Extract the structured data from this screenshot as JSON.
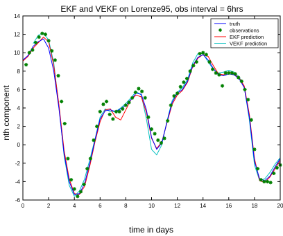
{
  "chart_data": {
    "type": "line",
    "title": "EKF and VEKF on Lorenze95, obs interval = 6hrs",
    "xlabel": "time in days",
    "ylabel": "nth component",
    "xlim": [
      0,
      20
    ],
    "ylim": [
      -6,
      14
    ],
    "xticks": [
      "0",
      "2",
      "4",
      "6",
      "8",
      "10",
      "12",
      "14",
      "16",
      "18",
      "20"
    ],
    "yticks": [
      "14",
      "12",
      "10",
      "8",
      "6",
      "4",
      "2",
      "0",
      "-2",
      "-4",
      "-6"
    ],
    "legend_position": "top-right",
    "grid": false,
    "series": [
      {
        "name": "truth",
        "style": "line",
        "color": "#0000ff",
        "x": [
          0.0,
          0.4,
          0.8,
          1.2,
          1.6,
          2.0,
          2.4,
          2.8,
          3.2,
          3.6,
          4.0,
          4.4,
          4.8,
          5.2,
          5.6,
          6.0,
          6.4,
          6.8,
          7.2,
          7.6,
          8.0,
          8.4,
          8.8,
          9.2,
          9.6,
          10.0,
          10.4,
          10.8,
          11.2,
          11.6,
          12.0,
          12.4,
          12.8,
          13.2,
          13.6,
          14.0,
          14.4,
          14.8,
          15.2,
          15.6,
          16.0,
          16.4,
          16.8,
          17.2,
          17.6,
          18.0,
          18.4,
          18.8,
          19.2,
          19.6,
          20.0
        ],
        "y": [
          9.2,
          9.7,
          10.7,
          11.2,
          11.5,
          10.5,
          8.0,
          4.0,
          -1.0,
          -4.0,
          -5.4,
          -5.3,
          -4.2,
          -2.0,
          0.5,
          2.8,
          3.7,
          3.8,
          3.6,
          3.9,
          4.3,
          4.9,
          5.6,
          5.5,
          3.8,
          0.8,
          -0.5,
          0.2,
          2.5,
          4.6,
          5.6,
          6.0,
          6.9,
          8.6,
          9.5,
          9.8,
          9.2,
          8.3,
          7.6,
          7.5,
          7.7,
          7.6,
          7.2,
          6.2,
          3.0,
          -1.8,
          -3.7,
          -3.9,
          -3.4,
          -2.4,
          -1.5
        ]
      },
      {
        "name": "observations",
        "style": "markers",
        "color": "#008000",
        "x": [
          0.25,
          0.5,
          0.75,
          1.0,
          1.25,
          1.5,
          1.75,
          2.0,
          2.25,
          2.5,
          2.75,
          3.0,
          3.25,
          3.5,
          3.75,
          4.0,
          4.25,
          4.5,
          4.75,
          5.0,
          5.25,
          5.5,
          5.75,
          6.0,
          6.25,
          6.5,
          6.75,
          7.0,
          7.25,
          7.5,
          7.75,
          8.0,
          8.25,
          8.5,
          8.75,
          9.0,
          9.25,
          9.5,
          9.75,
          10.0,
          10.25,
          10.5,
          10.75,
          11.0,
          11.25,
          11.5,
          11.75,
          12.0,
          12.25,
          12.5,
          12.75,
          13.0,
          13.25,
          13.5,
          13.75,
          14.0,
          14.25,
          14.5,
          14.75,
          15.0,
          15.25,
          15.5,
          15.75,
          16.0,
          16.25,
          16.5,
          16.75,
          17.0,
          17.25,
          17.5,
          17.75,
          18.0,
          18.25,
          18.5,
          18.75,
          19.0,
          19.25,
          19.5,
          19.75,
          20.0
        ],
        "y": [
          8.7,
          10.0,
          10.3,
          11.1,
          11.7,
          12.1,
          12.0,
          11.3,
          10.2,
          9.2,
          7.5,
          4.7,
          2.3,
          -1.5,
          -3.8,
          -4.8,
          -5.6,
          -5.1,
          -4.3,
          -2.6,
          -1.5,
          0.5,
          2.0,
          3.6,
          4.4,
          4.7,
          3.3,
          2.8,
          3.6,
          3.6,
          3.9,
          4.3,
          4.6,
          5.1,
          5.7,
          6.1,
          5.8,
          5.1,
          3.0,
          1.7,
          1.2,
          0.5,
          0.2,
          0.7,
          2.6,
          4.3,
          5.3,
          5.6,
          6.3,
          6.8,
          7.2,
          8.0,
          8.6,
          9.0,
          9.9,
          10.0,
          9.8,
          9.0,
          8.2,
          7.8,
          7.6,
          6.4,
          7.8,
          7.8,
          7.8,
          7.7,
          7.3,
          6.9,
          6.0,
          4.9,
          2.7,
          -0.5,
          -2.6,
          -3.8,
          -4.0,
          -4.0,
          -4.1,
          -3.1,
          -2.5,
          -2.2
        ]
      },
      {
        "name": "EKF prediction",
        "style": "line",
        "color": "#ff0000",
        "x": [
          0.0,
          0.4,
          0.8,
          1.2,
          1.6,
          2.0,
          2.4,
          2.8,
          3.2,
          3.6,
          4.0,
          4.4,
          4.8,
          5.2,
          5.6,
          6.0,
          6.4,
          6.8,
          7.2,
          7.6,
          8.0,
          8.4,
          8.8,
          9.2,
          9.6,
          10.0,
          10.4,
          10.8,
          11.2,
          11.6,
          12.0,
          12.4,
          12.8,
          13.2,
          13.6,
          14.0,
          14.4,
          14.8,
          15.2,
          15.6,
          16.0,
          16.4,
          16.8,
          17.2,
          17.6,
          18.0,
          18.4,
          18.8,
          19.2,
          19.6,
          20.0
        ],
        "y": [
          9.1,
          9.6,
          10.5,
          11.1,
          11.7,
          11.2,
          8.6,
          4.4,
          -0.6,
          -3.7,
          -5.3,
          -5.4,
          -4.5,
          -2.3,
          0.3,
          2.5,
          3.8,
          3.9,
          3.0,
          2.7,
          3.8,
          4.9,
          5.4,
          5.2,
          3.5,
          0.7,
          -0.4,
          0.3,
          2.4,
          4.4,
          5.4,
          5.9,
          6.8,
          8.5,
          9.4,
          9.8,
          9.6,
          8.6,
          7.7,
          7.6,
          7.9,
          7.7,
          7.3,
          6.4,
          3.3,
          -1.5,
          -3.9,
          -4.1,
          -3.5,
          -2.6,
          -1.7
        ]
      },
      {
        "name": "VEKF prediction",
        "style": "line",
        "color": "#00bfbf",
        "x": [
          0.0,
          0.4,
          0.8,
          1.2,
          1.6,
          2.0,
          2.4,
          2.8,
          3.2,
          3.6,
          4.0,
          4.4,
          4.8,
          5.2,
          5.6,
          6.0,
          6.4,
          6.8,
          7.2,
          7.6,
          8.0,
          8.4,
          8.8,
          9.2,
          9.6,
          10.0,
          10.4,
          10.8,
          11.2,
          11.6,
          12.0,
          12.4,
          12.8,
          13.2,
          13.6,
          14.0,
          14.4,
          14.8,
          15.2,
          15.6,
          16.0,
          16.4,
          16.8,
          17.2,
          17.6,
          18.0,
          18.4,
          18.8,
          19.2,
          19.6,
          20.0
        ],
        "y": [
          null,
          null,
          11.0,
          11.9,
          12.1,
          11.4,
          8.9,
          4.2,
          -1.2,
          -4.4,
          -5.6,
          -5.0,
          -3.7,
          -1.6,
          0.6,
          3.0,
          3.9,
          3.6,
          3.6,
          4.0,
          4.5,
          5.1,
          5.8,
          5.4,
          2.8,
          -0.5,
          -1.1,
          0.0,
          2.6,
          4.8,
          5.7,
          6.2,
          7.1,
          8.9,
          9.9,
          9.9,
          9.0,
          8.2,
          7.8,
          7.9,
          8.1,
          7.9,
          7.4,
          6.3,
          2.7,
          -2.2,
          -3.9,
          -3.7,
          -3.0,
          -2.1,
          -1.4
        ]
      }
    ]
  }
}
